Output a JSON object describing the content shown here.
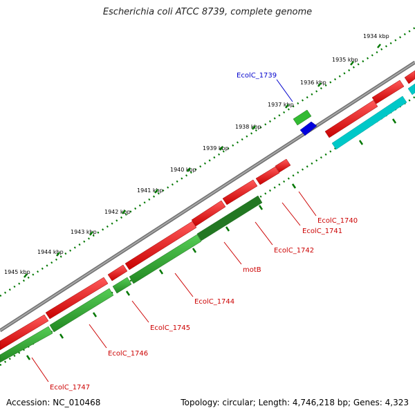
{
  "title": "Escherichia coli ATCC 8739, complete genome",
  "footer": {
    "accession": "Accession: NC_010468",
    "summary": "Topology: circular; Length: 4,746,218 bp; Genes: 4,323"
  },
  "ruler": {
    "unit": "kbp",
    "ticks": [
      "1934 kbp",
      "1935 kbp",
      "1936 kbp",
      "1937 kbp",
      "1938 kbp",
      "1939 kbp",
      "1940 kbp",
      "1941 kbp",
      "1942 kbp",
      "1943 kbp",
      "1944 kbp",
      "1945 kbp"
    ]
  },
  "genes": [
    {
      "name": "EcolC_1739",
      "color": "#0000cc"
    },
    {
      "name": "EcolC_1740",
      "color": "#cc0000"
    },
    {
      "name": "EcolC_1741",
      "color": "#cc0000"
    },
    {
      "name": "EcolC_1742",
      "color": "#cc0000"
    },
    {
      "name": "motB",
      "color": "#cc0000"
    },
    {
      "name": "EcolC_1744",
      "color": "#cc0000"
    },
    {
      "name": "EcolC_1745",
      "color": "#cc0000"
    },
    {
      "name": "EcolC_1746",
      "color": "#cc0000"
    },
    {
      "name": "EcolC_1747",
      "color": "#cc0000"
    }
  ],
  "colors": {
    "backbone": "#808080",
    "cds": "#ee0000",
    "gene": "#33aa33",
    "gene_dark": "#227722",
    "trna": "#00c8c8",
    "misc": "#0000dd",
    "ruler": "#007700"
  }
}
